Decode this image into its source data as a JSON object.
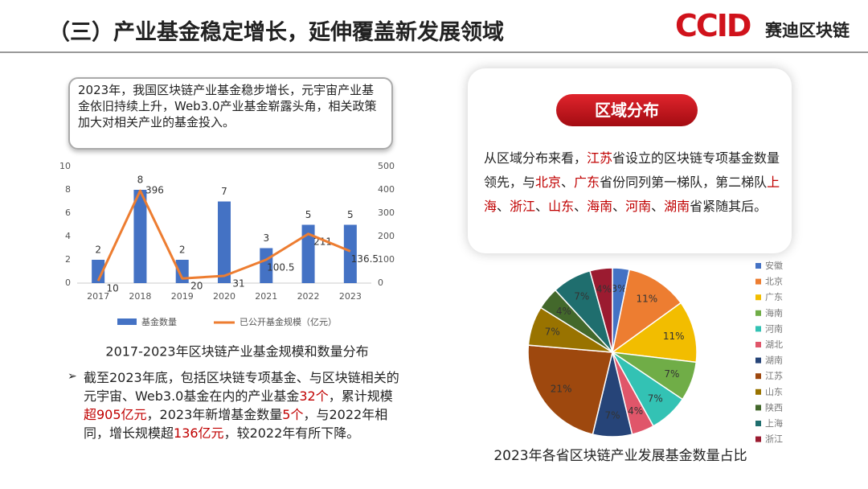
{
  "header": {
    "title": "（三）产业基金稳定增长，延伸覆盖新发展领域",
    "logo_mark": "CCID",
    "logo_text": "赛迪区块链"
  },
  "intro": "2023年，我国区块链产业基金稳步增长，元宇宙产业基金依旧持续上升，Web3.0产业基金崭露头角，相关政策加大对相关产业的基金投入。",
  "region": {
    "heading": "区域分布",
    "paragraph": [
      {
        "text": "从区域分布来看，"
      },
      {
        "text": "江苏",
        "red": true
      },
      {
        "text": "省设立的区块链专项基金数量领先，与"
      },
      {
        "text": "北京",
        "red": true
      },
      {
        "text": "、"
      },
      {
        "text": "广东",
        "red": true
      },
      {
        "text": "省份同列第一梯队，第二梯队"
      },
      {
        "text": "上海",
        "red": true
      },
      {
        "text": "、"
      },
      {
        "text": "浙江",
        "red": true
      },
      {
        "text": "、"
      },
      {
        "text": "山东",
        "red": true
      },
      {
        "text": "、"
      },
      {
        "text": "海南",
        "red": true
      },
      {
        "text": "、"
      },
      {
        "text": "河南",
        "red": true
      },
      {
        "text": "、"
      },
      {
        "text": "湖南",
        "red": true
      },
      {
        "text": "省紧随其后。"
      }
    ]
  },
  "bullet": [
    {
      "text": "截至2023年底，包括区块链专项基金、与区块链相关的元宇宙、Web3.0基金在内的产业基金"
    },
    {
      "text": "32个",
      "red": true
    },
    {
      "text": "，累计规模"
    },
    {
      "text": "超905亿元",
      "red": true
    },
    {
      "text": "，2023年新增基金数量"
    },
    {
      "text": "5个",
      "red": true
    },
    {
      "text": "，与2022年相同，增长规模超"
    },
    {
      "text": "136亿元",
      "red": true
    },
    {
      "text": "，较2022年有所下降。"
    }
  ],
  "chart_data": [
    {
      "type": "bar_line",
      "title": "2017-2023年区块链产业基金规模和数量分布",
      "categories": [
        "2017",
        "2018",
        "2019",
        "2020",
        "2021",
        "2022",
        "2023"
      ],
      "series": [
        {
          "name": "基金数量",
          "color": "#4472c4",
          "values": [
            2,
            8,
            2,
            7,
            3,
            5,
            5
          ]
        },
        {
          "name": "已公开基金规模（亿元）",
          "color": "#ed7d31",
          "values": [
            10,
            396,
            20,
            31,
            100.5,
            211,
            136.5
          ],
          "axis": "y2"
        }
      ],
      "ylim": [
        0,
        10
      ],
      "yticks": [
        0,
        2,
        4,
        6,
        8,
        10
      ],
      "y2lim": [
        0,
        500
      ],
      "y2ticks": [
        0,
        100,
        200,
        300,
        400,
        500
      ]
    },
    {
      "type": "pie",
      "title": "2023年各省区块链产业发展基金数量占比",
      "categories": [
        "安徽",
        "北京",
        "广东",
        "海南",
        "河南",
        "湖北",
        "湖南",
        "江苏",
        "山东",
        "陕西",
        "上海",
        "浙江"
      ],
      "values": [
        3,
        11,
        11,
        7,
        7,
        4,
        7,
        21,
        7,
        4,
        7,
        4
      ],
      "value_labels": [
        "3%",
        "11%",
        "11%",
        "7%",
        "7%",
        "4%",
        "7%",
        "21%",
        "7%",
        "4%",
        "7%",
        "4%"
      ],
      "colors": [
        "#4472c4",
        "#ed7d31",
        "#f2bd00",
        "#70ad47",
        "#33c2b4",
        "#e0566a",
        "#264478",
        "#9e480e",
        "#997300",
        "#43682b",
        "#1f6e6e",
        "#9b1b30"
      ]
    }
  ]
}
